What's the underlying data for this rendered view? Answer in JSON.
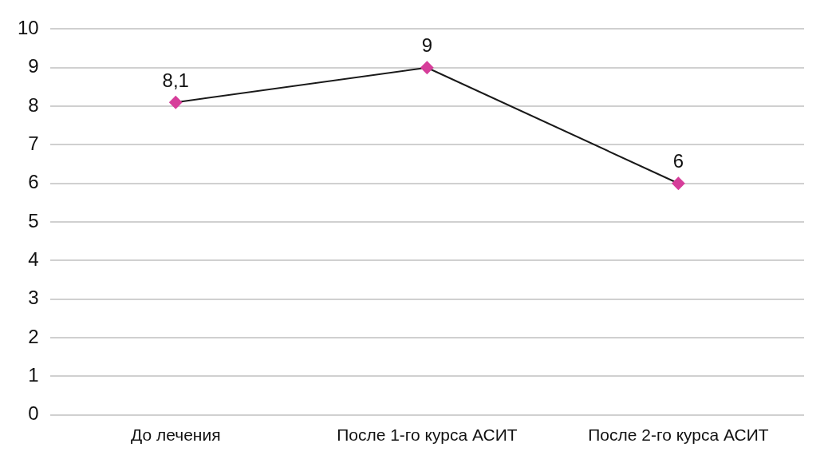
{
  "chart_data": {
    "type": "line",
    "categories": [
      "До лечения",
      "После 1-го курса АСИТ",
      "После 2-го курса АСИТ"
    ],
    "series": [
      {
        "color": "#d63e9a",
        "values": [
          8.1,
          9,
          6
        ],
        "value_labels": [
          "8,1",
          "9",
          "6"
        ]
      }
    ],
    "ylim": [
      0,
      10
    ],
    "yticks": [
      0,
      1,
      2,
      3,
      4,
      5,
      6,
      7,
      8,
      9,
      10
    ],
    "grid": "y",
    "legend": false,
    "marker": "diamond",
    "line_style": "solid"
  }
}
